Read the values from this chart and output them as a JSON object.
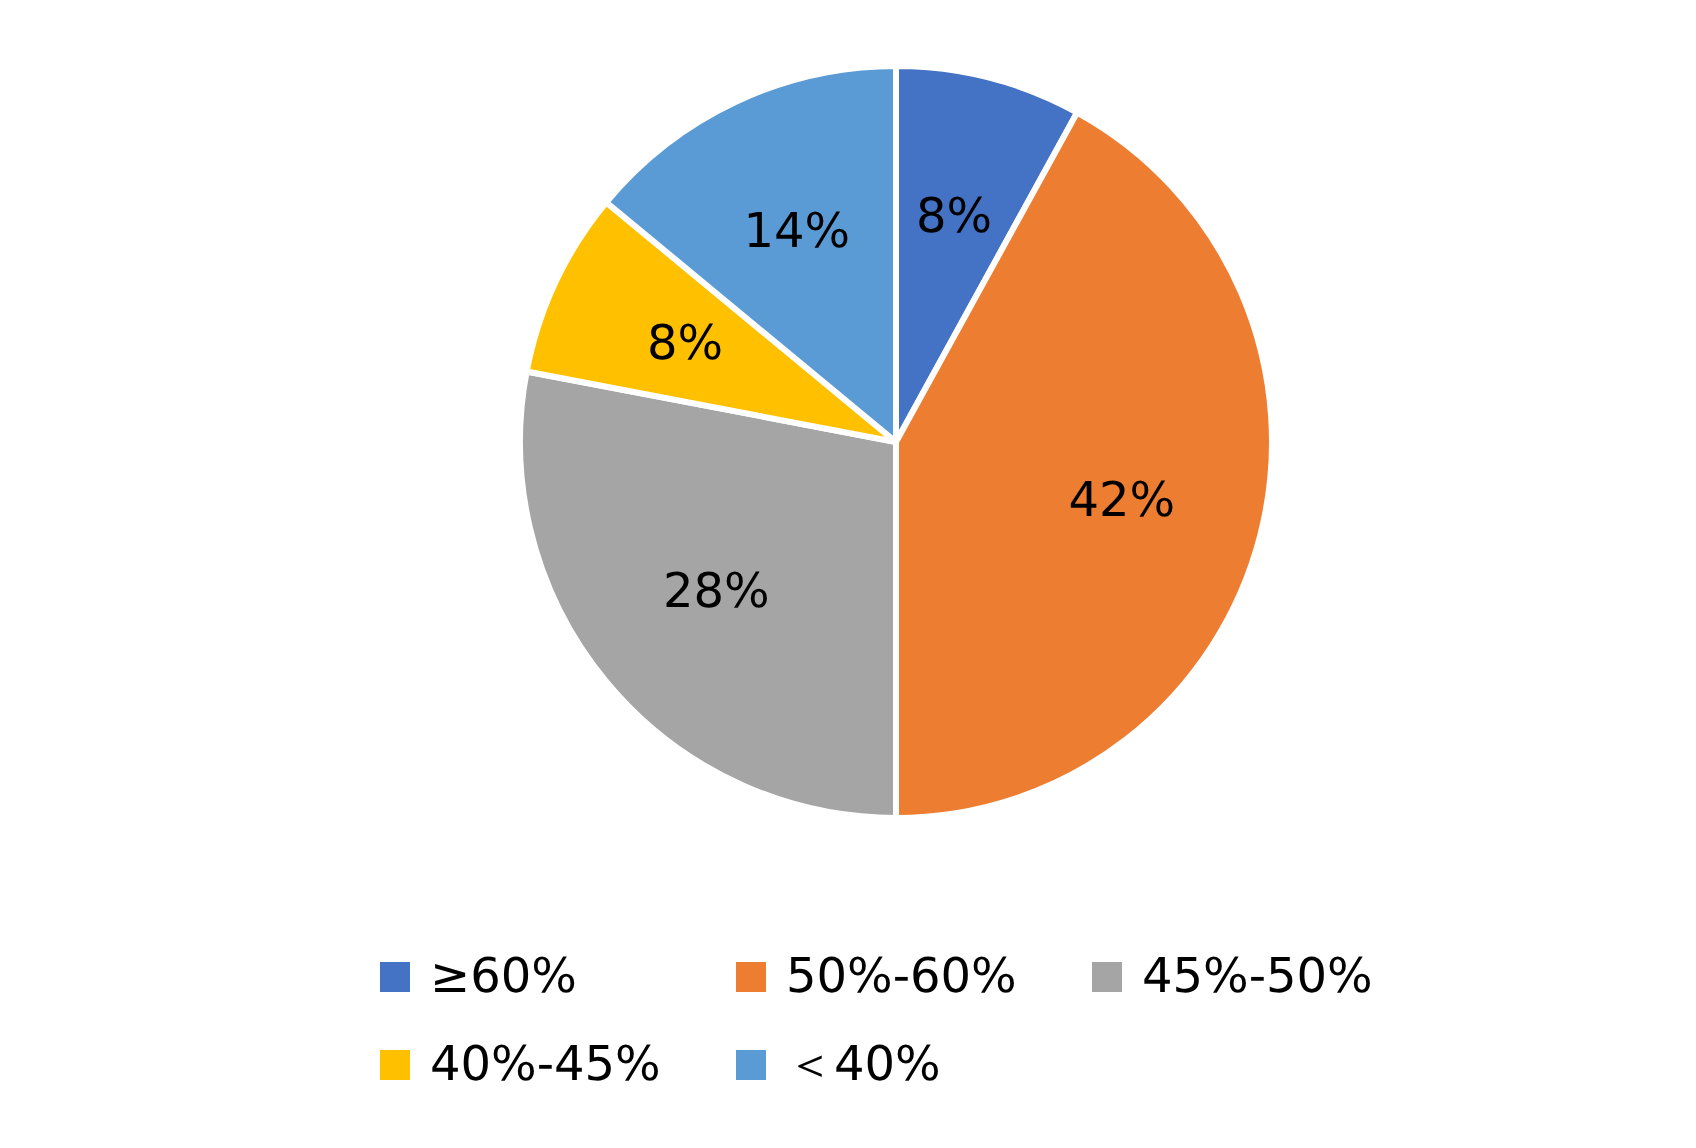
{
  "chart_data": {
    "type": "pie",
    "categories": [
      "≥60%",
      "50%-60%",
      "45%-50%",
      "40%-45%",
      "＜40%"
    ],
    "values": [
      8,
      42,
      28,
      8,
      14
    ],
    "colors": [
      "#4472c4",
      "#ed7d31",
      "#a5a5a5",
      "#ffc000",
      "#5b9bd5"
    ],
    "value_labels": [
      "8%",
      "42%",
      "28%",
      "8%",
      "14%"
    ],
    "legend": "bottom"
  }
}
